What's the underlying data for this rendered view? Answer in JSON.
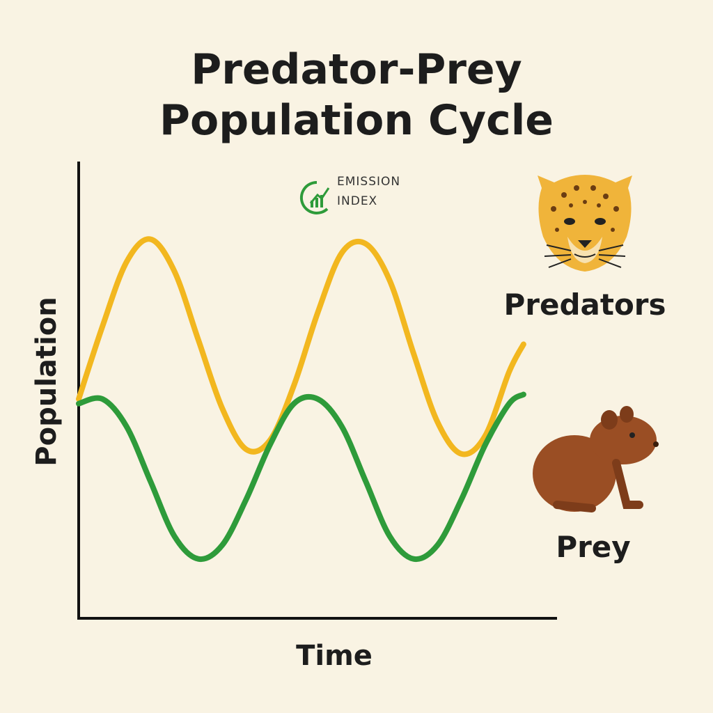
{
  "chart_data": {
    "type": "line",
    "title": [
      "Predator-Prey",
      "Population Cycle"
    ],
    "watermark": [
      "EMISSION",
      "INDEX"
    ],
    "xlabel": "Time",
    "ylabel": "Population",
    "x": [
      0,
      5,
      10,
      15,
      20,
      25,
      30,
      35,
      40,
      45,
      50,
      55,
      60,
      65,
      70,
      75,
      80,
      85,
      90,
      93
    ],
    "xlim": [
      0,
      100
    ],
    "ylim": [
      0,
      100
    ],
    "series": [
      {
        "name": "Predators",
        "color": "#f2b71f",
        "values": [
          48,
          64,
          78,
          83,
          76,
          61,
          46,
          37,
          39,
          51,
          67,
          80,
          82,
          74,
          58,
          43,
          36,
          40,
          54,
          60
        ]
      },
      {
        "name": "Prey",
        "color": "#2e9b3a",
        "values": [
          47,
          48,
          42,
          30,
          18,
          13,
          16,
          26,
          38,
          47,
          48,
          42,
          30,
          18,
          13,
          16,
          26,
          38,
          47,
          49
        ]
      }
    ]
  }
}
